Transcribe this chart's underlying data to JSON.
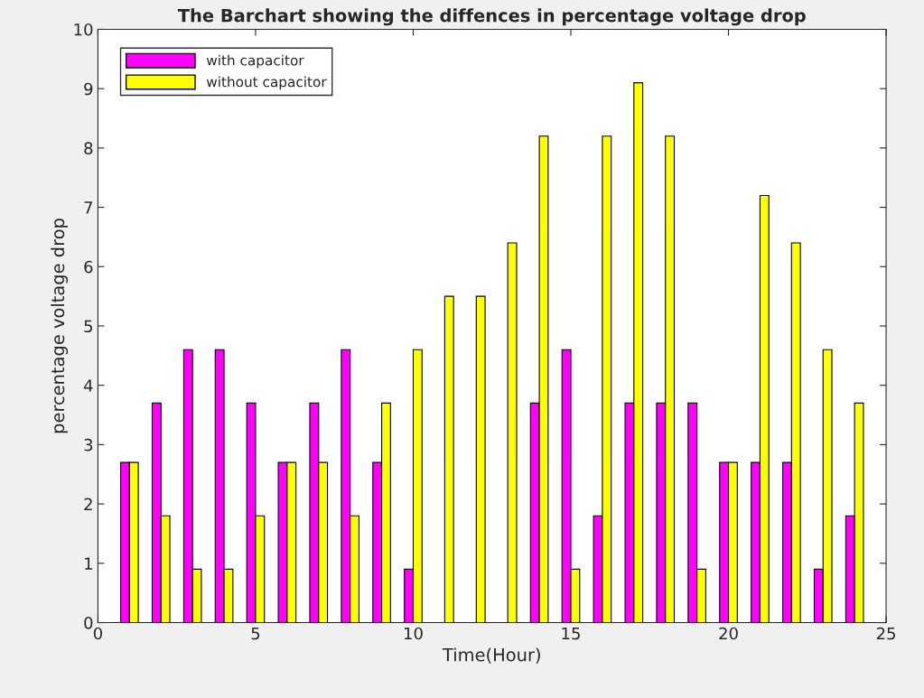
{
  "chart_data": {
    "type": "bar",
    "title": "The Barchart showing the diffences in percentage voltage drop",
    "xlabel": "Time(Hour)",
    "ylabel": "percentage voltage drop",
    "x": [
      1,
      2,
      3,
      4,
      5,
      6,
      7,
      8,
      9,
      10,
      11,
      12,
      13,
      14,
      15,
      16,
      17,
      18,
      19,
      20,
      21,
      22,
      23,
      24
    ],
    "series": [
      {
        "name": "with capacitor",
        "color": "#ff00ff",
        "values": [
          2.7,
          3.7,
          4.6,
          4.6,
          3.7,
          2.7,
          3.7,
          4.6,
          2.7,
          0.9,
          0,
          0,
          0,
          3.7,
          4.6,
          1.8,
          3.7,
          3.7,
          3.7,
          2.7,
          2.7,
          2.7,
          0.9,
          1.8
        ]
      },
      {
        "name": "without capacitor",
        "color": "#ffff00",
        "values": [
          2.7,
          1.8,
          0.9,
          0.9,
          1.8,
          2.7,
          2.7,
          1.8,
          3.7,
          4.6,
          5.5,
          5.5,
          6.4,
          8.2,
          0.9,
          8.2,
          9.1,
          8.2,
          0.9,
          2.7,
          7.2,
          6.4,
          4.6,
          3.7
        ]
      }
    ],
    "xlim": [
      0,
      25
    ],
    "xticks": [
      0,
      5,
      10,
      15,
      20,
      25
    ],
    "ylim": [
      0,
      10
    ],
    "yticks": [
      0,
      1,
      2,
      3,
      4,
      5,
      6,
      7,
      8,
      9,
      10
    ],
    "grid": false,
    "legend": "top left"
  }
}
